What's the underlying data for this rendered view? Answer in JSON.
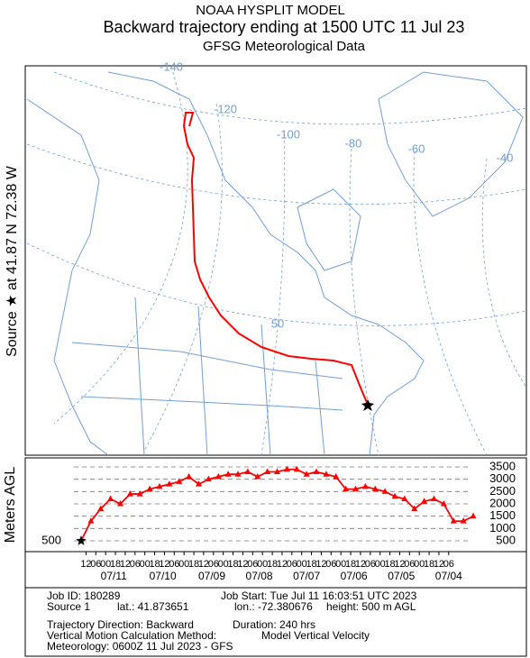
{
  "header": {
    "model": "NOAA HYSPLIT MODEL",
    "title": "Backward trajectory ending at 1500 UTC 11 Jul 23",
    "subtitle": "GFSG Meteorological Data"
  },
  "map": {
    "source_label": "Source ★ at 41.87 N 72.38 W",
    "grid_labels": [
      "-140",
      "-120",
      "-100",
      "-80",
      "-60",
      "-40",
      "50"
    ]
  },
  "chart_data": {
    "type": "line",
    "y_label": "Meters AGL",
    "x": [
      0,
      6,
      12,
      18,
      24,
      30,
      36,
      42,
      48,
      54,
      60,
      66,
      72,
      78,
      84,
      90,
      96,
      102,
      108,
      114,
      120,
      126,
      132,
      138,
      144,
      150,
      156,
      162,
      168,
      174,
      180,
      186,
      192,
      198,
      204,
      210,
      216,
      222,
      228,
      234,
      240
    ],
    "series": [
      {
        "color": "#ff0000",
        "values": [
          500,
          1300,
          1800,
          2200,
          2000,
          2400,
          2400,
          2600,
          2700,
          2800,
          2900,
          3100,
          2800,
          3000,
          3100,
          3200,
          3200,
          3300,
          3100,
          3300,
          3300,
          3400,
          3400,
          3200,
          3300,
          3200,
          3100,
          2600,
          2600,
          2700,
          2600,
          2500,
          2300,
          2200,
          1800,
          2100,
          2200,
          2000,
          1300,
          1300,
          1500
        ]
      }
    ],
    "xlim": [
      0,
      240
    ],
    "ylim": [
      200,
      3800
    ],
    "yticks": [
      500,
      1000,
      1500,
      2000,
      2500,
      3000,
      3500
    ],
    "xticks": [
      {
        "value": 3,
        "label": "12"
      },
      {
        "value": 9,
        "label": "06"
      },
      {
        "value": 15,
        "label": "00"
      },
      {
        "value": 21,
        "label": "18"
      },
      {
        "value": 27,
        "label": "12"
      },
      {
        "value": 33,
        "label": "06"
      },
      {
        "value": 39,
        "label": "00"
      },
      {
        "value": 45,
        "label": "18"
      },
      {
        "value": 51,
        "label": "12"
      },
      {
        "value": 57,
        "label": "06"
      },
      {
        "value": 63,
        "label": "00"
      },
      {
        "value": 69,
        "label": "18"
      },
      {
        "value": 75,
        "label": "12"
      },
      {
        "value": 81,
        "label": "06"
      },
      {
        "value": 87,
        "label": "00"
      },
      {
        "value": 93,
        "label": "18"
      },
      {
        "value": 99,
        "label": "12"
      },
      {
        "value": 105,
        "label": "06"
      },
      {
        "value": 111,
        "label": "00"
      },
      {
        "value": 117,
        "label": "18"
      },
      {
        "value": 123,
        "label": "12"
      },
      {
        "value": 129,
        "label": "06"
      },
      {
        "value": 135,
        "label": "00"
      },
      {
        "value": 141,
        "label": "18"
      },
      {
        "value": 147,
        "label": "12"
      },
      {
        "value": 153,
        "label": "06"
      },
      {
        "value": 159,
        "label": "00"
      },
      {
        "value": 165,
        "label": "18"
      },
      {
        "value": 171,
        "label": "12"
      },
      {
        "value": 177,
        "label": "06"
      },
      {
        "value": 183,
        "label": "00"
      },
      {
        "value": 189,
        "label": "18"
      },
      {
        "value": 195,
        "label": "12"
      },
      {
        "value": 201,
        "label": "06"
      },
      {
        "value": 207,
        "label": "00"
      },
      {
        "value": 213,
        "label": "18"
      },
      {
        "value": 219,
        "label": "12"
      },
      {
        "value": 225,
        "label": "06"
      }
    ],
    "date_ticks": [
      {
        "value": 20,
        "label": "07/11"
      },
      {
        "value": 50,
        "label": "07/10"
      },
      {
        "value": 80,
        "label": "07/09"
      },
      {
        "value": 109,
        "label": "07/08"
      },
      {
        "value": 138,
        "label": "07/07"
      },
      {
        "value": 167,
        "label": "07/06"
      },
      {
        "value": 196,
        "label": "07/05"
      },
      {
        "value": 225,
        "label": "07/04"
      }
    ]
  },
  "footer": {
    "job_id": "Job ID: 180289",
    "job_start": "Job Start: Tue Jul 11 16:03:51 UTC 2023",
    "source": "Source 1",
    "lat": "lat.: 41.873651",
    "lon": "lon.: -72.380676",
    "height": "height: 500 m AGL",
    "direction": "Trajectory Direction: Backward",
    "duration": "Duration: 240 hrs",
    "method_label": "Vertical Motion Calculation Method:",
    "method": "Model Vertical Velocity",
    "meteorology": "Meteorology: 0600Z 11 Jul 2023 - GFS"
  }
}
